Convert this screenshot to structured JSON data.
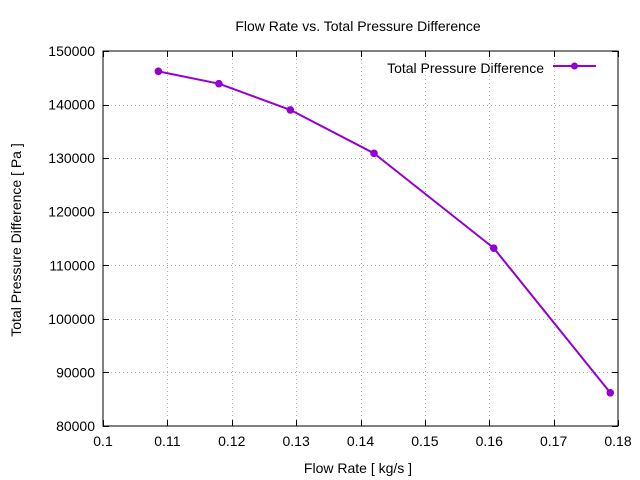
{
  "chart_data": {
    "type": "line",
    "title": "Flow Rate vs. Total Pressure Difference",
    "xlabel": "Flow Rate [ kg/s ]",
    "ylabel": "Total Pressure Difference [ Pa ]",
    "xlim": [
      0.1,
      0.18
    ],
    "ylim": [
      80000,
      150000
    ],
    "xticks": [
      0.1,
      0.11,
      0.12,
      0.13,
      0.14,
      0.15,
      0.16,
      0.17,
      0.18
    ],
    "xtick_labels": [
      "0.1",
      "0.11",
      "0.12",
      "0.13",
      "0.14",
      "0.15",
      "0.16",
      "0.17",
      "0.18"
    ],
    "yticks": [
      80000,
      90000,
      100000,
      110000,
      120000,
      130000,
      140000,
      150000
    ],
    "ytick_labels": [
      "80000",
      "90000",
      "100000",
      "110000",
      "120000",
      "130000",
      "140000",
      "150000"
    ],
    "grid": true,
    "legend_position": "top-right",
    "series": [
      {
        "name": "Total Pressure Difference",
        "color": "#9400d3",
        "marker": "circle",
        "x": [
          0.1086,
          0.118,
          0.1291,
          0.1421,
          0.1607,
          0.1788
        ],
        "y": [
          146200,
          143900,
          139000,
          130900,
          113200,
          86200
        ]
      }
    ]
  }
}
